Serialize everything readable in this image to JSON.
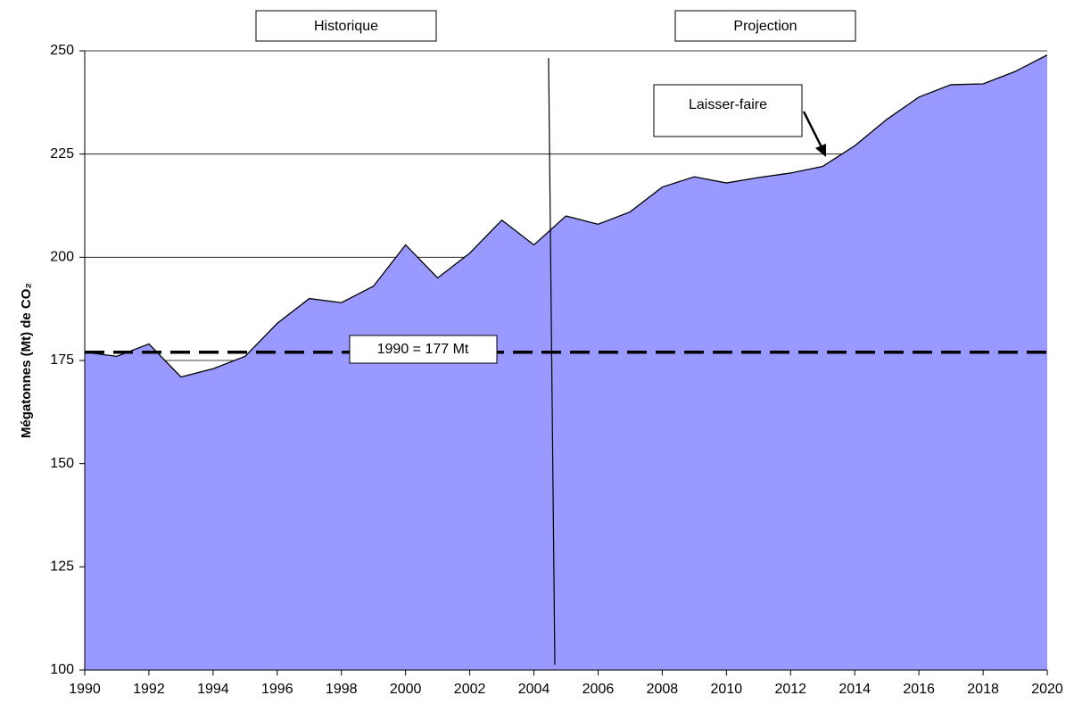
{
  "chart_data": {
    "type": "area",
    "y_label": "Mégatonnes (Mt) de CO₂",
    "annotations": {
      "historic": "Historique",
      "projection": "Projection",
      "scenario": "Laisser-faire",
      "baseline_label": "1990 = 177 Mt"
    },
    "baseline": 177,
    "x": [
      1990,
      1991,
      1992,
      1993,
      1994,
      1995,
      1996,
      1997,
      1998,
      1999,
      2000,
      2001,
      2002,
      2003,
      2004,
      2005,
      2006,
      2007,
      2008,
      2009,
      2010,
      2011,
      2012,
      2013,
      2014,
      2015,
      2016,
      2017,
      2018,
      2019,
      2020
    ],
    "values": [
      177,
      176,
      179,
      171,
      173,
      176,
      184,
      190,
      189,
      193,
      203,
      195,
      201,
      209,
      203,
      210,
      208,
      211,
      217,
      219.5,
      218,
      219.3,
      220.4,
      222,
      227,
      233.4,
      238.8,
      241.8,
      242,
      245,
      249
    ],
    "color": "#9999ff",
    "xlim": [
      1990,
      2020
    ],
    "xticks": [
      1990,
      1992,
      1994,
      1996,
      1998,
      2000,
      2002,
      2004,
      2006,
      2008,
      2010,
      2012,
      2014,
      2016,
      2018,
      2020
    ],
    "ylim": [
      100,
      250
    ],
    "yticks": [
      100,
      125,
      150,
      175,
      200,
      225,
      250
    ],
    "grid": true
  }
}
